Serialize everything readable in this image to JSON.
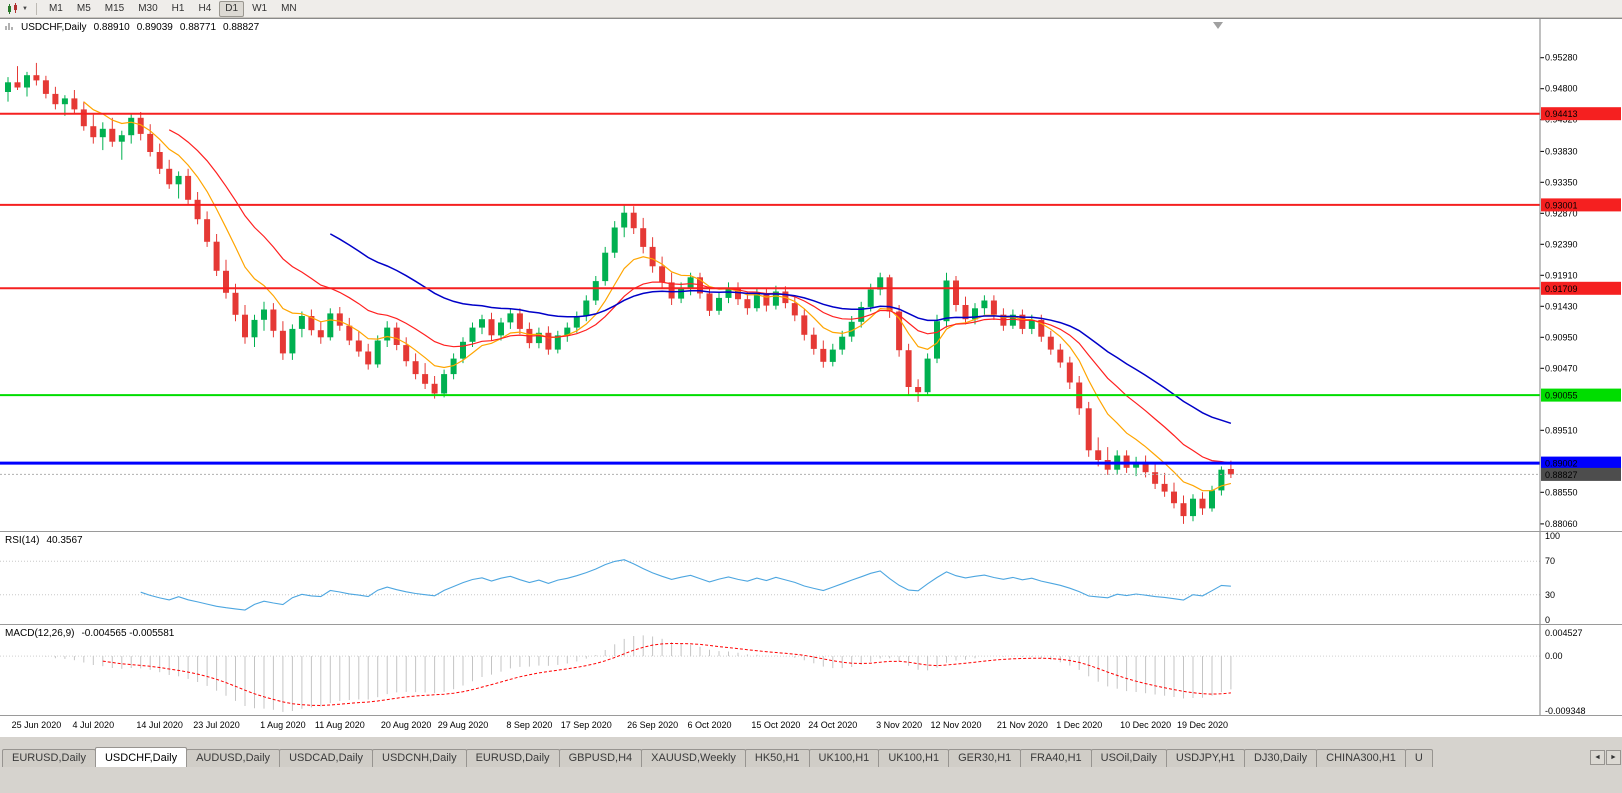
{
  "toolbar": {
    "timeframes": [
      "M1",
      "M5",
      "M15",
      "M30",
      "H1",
      "H4",
      "D1",
      "W1",
      "MN"
    ],
    "active_timeframe": "D1"
  },
  "icons": {
    "caret": "▼",
    "left_arrow": "◄",
    "right_arrow": "►"
  },
  "main_chart": {
    "symbol": "USDCHF,Daily",
    "open": "0.88910",
    "high": "0.89039",
    "low": "0.88771",
    "close": "0.88827"
  },
  "price_axis": {
    "ticks": [
      "0.95280",
      "0.94800",
      "0.94320",
      "0.93830",
      "0.93350",
      "0.92870",
      "0.92390",
      "0.91910",
      "0.91430",
      "0.90950",
      "0.90470",
      "0.89510",
      "0.88550",
      "0.88060"
    ],
    "range_top": 0.9588,
    "range_bottom": 0.8795
  },
  "hlines": [
    {
      "price": 0.94413,
      "label": "0.94413",
      "color": "#f52020",
      "width": 2,
      "text_color": "#ffffff"
    },
    {
      "price": 0.93001,
      "label": "0.93001",
      "color": "#f52020",
      "width": 2,
      "text_color": "#ffffff"
    },
    {
      "price": 0.91709,
      "label": "0.91709",
      "color": "#f52020",
      "width": 2,
      "text_color": "#ffffff"
    },
    {
      "price": 0.90055,
      "label": "0.90055",
      "color": "#00dd00",
      "width": 2,
      "text_color": "#000000"
    },
    {
      "price": 0.89002,
      "label": "0.89002",
      "color": "#0000ff",
      "width": 3,
      "text_color": "#ffffff"
    }
  ],
  "current_price": {
    "value": 0.88827,
    "label": "0.88827",
    "box_color": "#4d4d4d",
    "text_color": "#ffffff"
  },
  "rsi_panel": {
    "label": "RSI(14)",
    "value": "40.3567",
    "levels": [
      "100",
      "70",
      "30",
      "0"
    ],
    "line_color": "#4da6e0"
  },
  "macd_panel": {
    "label": "MACD(12,26,9)",
    "value": "-0.004565 -0.005581",
    "scale_top": "0.004527",
    "scale_zero": "0.00",
    "scale_bottom": "-0.009348",
    "hist_color": "#c4c4c4",
    "signal_color": "#ff0000"
  },
  "date_axis": {
    "labels": [
      {
        "text": "25 Jun 2020",
        "index": 3
      },
      {
        "text": "4 Jul 2020",
        "index": 9
      },
      {
        "text": "14 Jul 2020",
        "index": 16
      },
      {
        "text": "23 Jul 2020",
        "index": 22
      },
      {
        "text": "1 Aug 2020",
        "index": 29
      },
      {
        "text": "11 Aug 2020",
        "index": 35
      },
      {
        "text": "20 Aug 2020",
        "index": 42
      },
      {
        "text": "29 Aug 2020",
        "index": 48
      },
      {
        "text": "8 Sep 2020",
        "index": 55
      },
      {
        "text": "17 Sep 2020",
        "index": 61
      },
      {
        "text": "26 Sep 2020",
        "index": 68
      },
      {
        "text": "6 Oct 2020",
        "index": 74
      },
      {
        "text": "15 Oct 2020",
        "index": 81
      },
      {
        "text": "24 Oct 2020",
        "index": 87
      },
      {
        "text": "3 Nov 2020",
        "index": 94
      },
      {
        "text": "12 Nov 2020",
        "index": 100
      },
      {
        "text": "21 Nov 2020",
        "index": 107
      },
      {
        "text": "1 Dec 2020",
        "index": 113
      },
      {
        "text": "10 Dec 2020",
        "index": 120
      },
      {
        "text": "19 Dec 2020",
        "index": 126
      }
    ]
  },
  "tabs": {
    "items": [
      "EURUSD,Daily",
      "USDCHF,Daily",
      "AUDUSD,Daily",
      "USDCAD,Daily",
      "USDCNH,Daily",
      "EURUSD,Daily",
      "GBPUSD,H4",
      "XAUUSD,Weekly",
      "HK50,H1",
      "UK100,H1",
      "UK100,H1",
      "GER30,H1",
      "FRA40,H1",
      "USOil,Daily",
      "USDJPY,H1",
      "DJ30,Daily",
      "CHINA300,H1",
      "U"
    ],
    "active_index": 1
  },
  "chart_data": {
    "type": "candlestick",
    "symbol": "USDCHF",
    "timeframe": "Daily",
    "up_color": "#00b050",
    "down_color": "#e53935",
    "ma": [
      {
        "type": "ema",
        "period": 8,
        "color": "#ffa500",
        "width": 1.2
      },
      {
        "type": "ema",
        "period": 17,
        "color": "#ff2020",
        "width": 1.2
      },
      {
        "type": "ema",
        "period": 34,
        "color": "#0000c8",
        "width": 1.5
      }
    ],
    "candles": [
      [
        0.9475,
        0.9498,
        0.946,
        0.949
      ],
      [
        0.949,
        0.9515,
        0.9478,
        0.9482
      ],
      [
        0.9482,
        0.9506,
        0.9468,
        0.9501
      ],
      [
        0.9501,
        0.952,
        0.9485,
        0.9493
      ],
      [
        0.9493,
        0.95,
        0.9465,
        0.9472
      ],
      [
        0.9472,
        0.9483,
        0.9448,
        0.9456
      ],
      [
        0.9456,
        0.947,
        0.9438,
        0.9465
      ],
      [
        0.9465,
        0.9478,
        0.9442,
        0.9448
      ],
      [
        0.9448,
        0.946,
        0.9415,
        0.9422
      ],
      [
        0.9422,
        0.944,
        0.9395,
        0.9405
      ],
      [
        0.9405,
        0.9428,
        0.9385,
        0.9418
      ],
      [
        0.9418,
        0.9435,
        0.939,
        0.9398
      ],
      [
        0.9398,
        0.9415,
        0.937,
        0.9408
      ],
      [
        0.9408,
        0.9442,
        0.9395,
        0.9435
      ],
      [
        0.9435,
        0.9444,
        0.94,
        0.941
      ],
      [
        0.941,
        0.9425,
        0.9375,
        0.9382
      ],
      [
        0.9382,
        0.9395,
        0.9348,
        0.9356
      ],
      [
        0.9356,
        0.937,
        0.9325,
        0.9332
      ],
      [
        0.9332,
        0.9352,
        0.931,
        0.9345
      ],
      [
        0.9345,
        0.9356,
        0.93,
        0.9308
      ],
      [
        0.9308,
        0.932,
        0.927,
        0.9278
      ],
      [
        0.9278,
        0.929,
        0.9235,
        0.9243
      ],
      [
        0.9243,
        0.9255,
        0.919,
        0.9198
      ],
      [
        0.9198,
        0.9215,
        0.9155,
        0.9164
      ],
      [
        0.9164,
        0.9178,
        0.912,
        0.913
      ],
      [
        0.913,
        0.9145,
        0.9085,
        0.9095
      ],
      [
        0.9095,
        0.913,
        0.908,
        0.9122
      ],
      [
        0.9122,
        0.915,
        0.9105,
        0.9138
      ],
      [
        0.9138,
        0.9148,
        0.9095,
        0.9105
      ],
      [
        0.9105,
        0.912,
        0.906,
        0.907
      ],
      [
        0.907,
        0.9115,
        0.906,
        0.9108
      ],
      [
        0.9108,
        0.9135,
        0.9095,
        0.9128
      ],
      [
        0.9128,
        0.9138,
        0.9098,
        0.9106
      ],
      [
        0.9106,
        0.912,
        0.9085,
        0.9095
      ],
      [
        0.9095,
        0.914,
        0.909,
        0.9132
      ],
      [
        0.9132,
        0.9142,
        0.9105,
        0.9113
      ],
      [
        0.9113,
        0.9125,
        0.9083,
        0.909
      ],
      [
        0.909,
        0.9105,
        0.9065,
        0.9073
      ],
      [
        0.9073,
        0.9085,
        0.9045,
        0.9053
      ],
      [
        0.9053,
        0.9098,
        0.9048,
        0.909
      ],
      [
        0.909,
        0.912,
        0.908,
        0.911
      ],
      [
        0.911,
        0.9118,
        0.9075,
        0.9083
      ],
      [
        0.9083,
        0.9095,
        0.905,
        0.9058
      ],
      [
        0.9058,
        0.907,
        0.903,
        0.9038
      ],
      [
        0.9038,
        0.9055,
        0.9015,
        0.9023
      ],
      [
        0.9023,
        0.9035,
        0.9,
        0.9008
      ],
      [
        0.9008,
        0.9045,
        0.9002,
        0.9038
      ],
      [
        0.9038,
        0.907,
        0.903,
        0.9062
      ],
      [
        0.9062,
        0.9095,
        0.9055,
        0.9088
      ],
      [
        0.9088,
        0.9118,
        0.908,
        0.911
      ],
      [
        0.911,
        0.913,
        0.91,
        0.9123
      ],
      [
        0.9123,
        0.9133,
        0.909,
        0.9098
      ],
      [
        0.9098,
        0.9125,
        0.909,
        0.9118
      ],
      [
        0.9118,
        0.914,
        0.9108,
        0.9132
      ],
      [
        0.9132,
        0.914,
        0.91,
        0.9108
      ],
      [
        0.9108,
        0.9118,
        0.9078,
        0.9086
      ],
      [
        0.9086,
        0.911,
        0.9078,
        0.9102
      ],
      [
        0.9102,
        0.9112,
        0.9068,
        0.9076
      ],
      [
        0.9076,
        0.9105,
        0.907,
        0.9098
      ],
      [
        0.9098,
        0.9118,
        0.9088,
        0.911
      ],
      [
        0.911,
        0.9135,
        0.9102,
        0.9128
      ],
      [
        0.9128,
        0.916,
        0.912,
        0.9152
      ],
      [
        0.9152,
        0.919,
        0.9145,
        0.9182
      ],
      [
        0.9182,
        0.9235,
        0.9175,
        0.9226
      ],
      [
        0.9226,
        0.9275,
        0.9218,
        0.9265
      ],
      [
        0.9265,
        0.93,
        0.925,
        0.9288
      ],
      [
        0.9288,
        0.9298,
        0.9255,
        0.9264
      ],
      [
        0.9264,
        0.928,
        0.9225,
        0.9235
      ],
      [
        0.9235,
        0.925,
        0.9195,
        0.9205
      ],
      [
        0.9205,
        0.922,
        0.917,
        0.918
      ],
      [
        0.918,
        0.9195,
        0.9145,
        0.9155
      ],
      [
        0.9155,
        0.918,
        0.9148,
        0.9172
      ],
      [
        0.9172,
        0.9195,
        0.916,
        0.9188
      ],
      [
        0.9188,
        0.9195,
        0.9155,
        0.9163
      ],
      [
        0.9163,
        0.9172,
        0.9128,
        0.9136
      ],
      [
        0.9136,
        0.9165,
        0.913,
        0.9156
      ],
      [
        0.9156,
        0.918,
        0.9148,
        0.9172
      ],
      [
        0.9172,
        0.918,
        0.9145,
        0.9154
      ],
      [
        0.9154,
        0.9165,
        0.913,
        0.914
      ],
      [
        0.914,
        0.917,
        0.9135,
        0.9162
      ],
      [
        0.9162,
        0.917,
        0.9135,
        0.9144
      ],
      [
        0.9144,
        0.9175,
        0.9138,
        0.9166
      ],
      [
        0.9166,
        0.9174,
        0.914,
        0.9148
      ],
      [
        0.9148,
        0.916,
        0.912,
        0.9129
      ],
      [
        0.9129,
        0.9138,
        0.909,
        0.9099
      ],
      [
        0.9099,
        0.911,
        0.9068,
        0.9077
      ],
      [
        0.9077,
        0.909,
        0.9048,
        0.9057
      ],
      [
        0.9057,
        0.9085,
        0.905,
        0.9076
      ],
      [
        0.9076,
        0.9105,
        0.9068,
        0.9096
      ],
      [
        0.9096,
        0.9128,
        0.9088,
        0.9119
      ],
      [
        0.9119,
        0.915,
        0.911,
        0.9142
      ],
      [
        0.9142,
        0.9178,
        0.9135,
        0.9169
      ],
      [
        0.9169,
        0.9195,
        0.916,
        0.9188
      ],
      [
        0.9188,
        0.9192,
        0.9125,
        0.9135
      ],
      [
        0.9135,
        0.9145,
        0.9065,
        0.9075
      ],
      [
        0.9075,
        0.9085,
        0.9005,
        0.9018
      ],
      [
        0.9018,
        0.903,
        0.8995,
        0.901
      ],
      [
        0.901,
        0.907,
        0.9005,
        0.9062
      ],
      [
        0.9062,
        0.913,
        0.9055,
        0.912
      ],
      [
        0.912,
        0.9195,
        0.911,
        0.9183
      ],
      [
        0.9183,
        0.919,
        0.9135,
        0.9145
      ],
      [
        0.9145,
        0.9158,
        0.9115,
        0.9123
      ],
      [
        0.9123,
        0.9148,
        0.9115,
        0.914
      ],
      [
        0.914,
        0.916,
        0.913,
        0.9152
      ],
      [
        0.9152,
        0.916,
        0.9122,
        0.913
      ],
      [
        0.913,
        0.914,
        0.9105,
        0.9113
      ],
      [
        0.9113,
        0.9138,
        0.9108,
        0.913
      ],
      [
        0.913,
        0.9138,
        0.91,
        0.9108
      ],
      [
        0.9108,
        0.913,
        0.91,
        0.9122
      ],
      [
        0.9122,
        0.913,
        0.9088,
        0.9096
      ],
      [
        0.9096,
        0.9105,
        0.9068,
        0.9076
      ],
      [
        0.9076,
        0.9085,
        0.9048,
        0.9056
      ],
      [
        0.9056,
        0.9065,
        0.9015,
        0.9025
      ],
      [
        0.9025,
        0.9035,
        0.8975,
        0.8985
      ],
      [
        0.8985,
        0.8995,
        0.891,
        0.892
      ],
      [
        0.892,
        0.894,
        0.8895,
        0.8905
      ],
      [
        0.8905,
        0.8925,
        0.8882,
        0.889
      ],
      [
        0.889,
        0.892,
        0.8882,
        0.8912
      ],
      [
        0.8912,
        0.892,
        0.8885,
        0.8893
      ],
      [
        0.8893,
        0.891,
        0.888,
        0.8902
      ],
      [
        0.8902,
        0.8912,
        0.8878,
        0.8886
      ],
      [
        0.8886,
        0.8898,
        0.886,
        0.8868
      ],
      [
        0.8868,
        0.8885,
        0.8848,
        0.8856
      ],
      [
        0.8856,
        0.887,
        0.883,
        0.8838
      ],
      [
        0.8838,
        0.885,
        0.8806,
        0.8818
      ],
      [
        0.8818,
        0.8852,
        0.881,
        0.8845
      ],
      [
        0.8845,
        0.8855,
        0.882,
        0.883
      ],
      [
        0.883,
        0.8865,
        0.8825,
        0.8858
      ],
      [
        0.8858,
        0.8895,
        0.885,
        0.889
      ],
      [
        0.8891,
        0.89039,
        0.88771,
        0.88827
      ]
    ]
  }
}
